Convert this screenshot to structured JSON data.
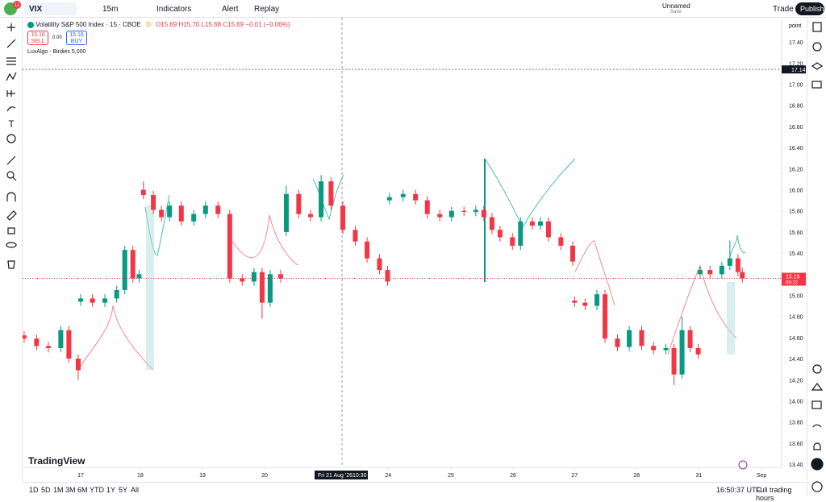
{
  "toolbar": {
    "avatar_badge": "11",
    "symbol": "VIX",
    "interval": "15m",
    "indicators": "Indicators",
    "alert": "Alert",
    "replay": "Replay",
    "layout_name": "Unnamed",
    "layout_status": "Save",
    "trade": "Trade",
    "publish": "Publish"
  },
  "legend": {
    "instrument": "Volatility S&P 500 Index · 15 · CBOE",
    "flag": "D",
    "ohlc": "O15.69 H15.70 L15.68 C15.69 −0.01 (−0.06%)",
    "sell_price": "15.16",
    "sell": "SELL",
    "spread": "0.00",
    "buy_price": "15.16",
    "buy": "BUY",
    "indicator": "LuxAlgo - Birdies 5,000"
  },
  "footer": {
    "ranges": [
      "1D",
      "5D",
      "1M",
      "3M",
      "6M",
      "YTD",
      "1Y",
      "5Y",
      "All"
    ],
    "clock": "16:50:37 UTC",
    "session": "Full trading hours"
  },
  "chart_data": {
    "type": "candlestick",
    "axis_unit": "point",
    "logo": "TradingView",
    "crosshair_date": "Fri 21 Aug '26",
    "crosshair_time": "10:30",
    "countdown": "09:22",
    "price_line": 17.14,
    "last_price": 15.16,
    "up_color": "#089981",
    "down_color": "#f23645",
    "xlim": [
      -0.935,
      11.27
    ],
    "ylim": [
      13.37,
      17.63
    ],
    "xticks": [
      {
        "value": 0,
        "label": "17"
      },
      {
        "value": 0.96,
        "label": "18"
      },
      {
        "value": 1.96,
        "label": "19"
      },
      {
        "value": 2.96,
        "label": "20"
      },
      {
        "value": 4.95,
        "label": "24"
      },
      {
        "value": 5.96,
        "label": "25"
      },
      {
        "value": 6.96,
        "label": "26"
      },
      {
        "value": 7.95,
        "label": "27"
      },
      {
        "value": 8.95,
        "label": "28"
      },
      {
        "value": 9.95,
        "label": "31"
      },
      {
        "value": 10.96,
        "label": "Sep"
      }
    ],
    "yticks": [
      {
        "value": 13.4,
        "label": "13.40"
      },
      {
        "value": 13.6,
        "label": "13.60"
      },
      {
        "value": 13.8,
        "label": "13.80"
      },
      {
        "value": 14,
        "label": "14.00"
      },
      {
        "value": 14.2,
        "label": "14.20"
      },
      {
        "value": 14.4,
        "label": "14.40"
      },
      {
        "value": 14.6,
        "label": "14.60"
      },
      {
        "value": 14.8,
        "label": "14.80"
      },
      {
        "value": 15,
        "label": "15.00"
      },
      {
        "value": 15.2,
        "label": "15.20"
      },
      {
        "value": 15.4,
        "label": "15.40"
      },
      {
        "value": 15.6,
        "label": "15.60"
      },
      {
        "value": 15.8,
        "label": "15.80"
      },
      {
        "value": 16,
        "label": "16.00"
      },
      {
        "value": 16.2,
        "label": "16.20"
      },
      {
        "value": 16.4,
        "label": "16.40"
      },
      {
        "value": 16.6,
        "label": "16.60"
      },
      {
        "value": 16.8,
        "label": "16.80"
      },
      {
        "value": 17,
        "label": "17.00"
      },
      {
        "value": 17.2,
        "label": "17.20"
      },
      {
        "value": 17.4,
        "label": "17.40"
      }
    ],
    "x": [
      -0.91,
      -0.71,
      -0.52,
      -0.32,
      -0.19,
      -0.04,
      0,
      0.19,
      0.39,
      0.58,
      0.71,
      0.84,
      0.94,
      1.01,
      1.17,
      1.3,
      1.43,
      1.62,
      1.82,
      2.01,
      2.21,
      2.4,
      2.6,
      2.79,
      2.92,
      3.05,
      3.22,
      3.31,
      3.51,
      3.7,
      3.87,
      4.03,
      4.22,
      4.42,
      4.61,
      4.81,
      4.94,
      4.97,
      5.19,
      5.39,
      5.58,
      5.78,
      5.97,
      6.17,
      6.36,
      6.49,
      6.62,
      6.75,
      6.95,
      7.08,
      7.27,
      7.4,
      7.53,
      7.73,
      7.92,
      7.95,
      8.12,
      8.31,
      8.44,
      8.64,
      8.83,
      9.03,
      9.22,
      9.42,
      9.55,
      9.68,
      9.81,
      9.94,
      9.97,
      10.13,
      10.32,
      10.45,
      10.58,
      10.65
    ],
    "open": [
      14.62,
      14.59,
      14.52,
      14.5,
      14.67,
      14.4,
      14.94,
      14.97,
      14.93,
      14.97,
      15.05,
      15.43,
      15.16,
      16.0,
      15.95,
      15.81,
      15.74,
      15.85,
      15.7,
      15.77,
      15.85,
      15.77,
      15.16,
      15.13,
      15.22,
      14.93,
      15.2,
      15.6,
      15.96,
      15.77,
      15.74,
      16.08,
      15.85,
      15.62,
      15.51,
      15.35,
      15.24,
      15.9,
      15.93,
      15.96,
      15.9,
      15.77,
      15.74,
      15.8,
      15.79,
      15.81,
      15.74,
      15.62,
      15.55,
      15.47,
      15.7,
      15.66,
      15.7,
      15.55,
      15.47,
      14.95,
      14.93,
      14.9,
      15.01,
      14.59,
      14.51,
      14.67,
      14.52,
      14.48,
      14.5,
      14.25,
      14.67,
      14.5,
      15.2,
      15.24,
      15.2,
      15.28,
      15.35,
      15.22
    ],
    "high": [
      14.66,
      14.63,
      14.56,
      14.71,
      14.71,
      14.44,
      15.01,
      15.01,
      15.01,
      15.09,
      15.47,
      15.47,
      15.24,
      16.08,
      15.99,
      15.85,
      15.89,
      15.89,
      15.81,
      15.89,
      15.89,
      15.81,
      15.2,
      15.26,
      15.26,
      15.24,
      15.24,
      16.04,
      16.0,
      15.81,
      16.14,
      16.12,
      15.89,
      15.66,
      15.55,
      15.39,
      15.28,
      15.97,
      16.0,
      16.0,
      15.94,
      15.81,
      15.84,
      15.84,
      15.85,
      15.85,
      15.78,
      15.66,
      15.59,
      15.74,
      15.74,
      15.74,
      15.74,
      15.59,
      15.51,
      14.99,
      14.97,
      15.05,
      15.05,
      14.63,
      14.71,
      14.71,
      14.56,
      14.54,
      14.54,
      14.8,
      14.71,
      14.54,
      15.28,
      15.28,
      15.32,
      15.52,
      15.39,
      15.26
    ],
    "low": [
      14.55,
      14.48,
      14.46,
      14.46,
      14.36,
      14.2,
      14.9,
      14.89,
      14.89,
      14.93,
      15.01,
      15.12,
      15.12,
      15.91,
      15.77,
      15.7,
      15.7,
      15.66,
      15.66,
      15.73,
      15.73,
      15.12,
      15.09,
      15.09,
      14.78,
      14.89,
      15.12,
      15.56,
      15.73,
      15.7,
      15.7,
      15.81,
      15.58,
      15.47,
      15.31,
      15.2,
      15.09,
      15.86,
      15.89,
      15.86,
      15.73,
      15.7,
      15.7,
      15.75,
      15.75,
      15.7,
      15.58,
      15.51,
      15.43,
      15.43,
      15.62,
      15.62,
      15.51,
      15.43,
      15.28,
      14.89,
      14.86,
      14.86,
      14.55,
      14.47,
      14.47,
      14.48,
      14.44,
      14.44,
      14.15,
      14.21,
      14.46,
      14.4,
      15.16,
      15.16,
      15.16,
      15.24,
      15.18,
      15.12
    ],
    "close": [
      14.59,
      14.52,
      14.5,
      14.67,
      14.4,
      14.29,
      14.97,
      14.93,
      14.97,
      15.05,
      15.43,
      15.16,
      15.2,
      15.95,
      15.81,
      15.74,
      15.85,
      15.7,
      15.77,
      15.85,
      15.77,
      15.16,
      15.13,
      15.22,
      14.93,
      15.2,
      15.16,
      15.96,
      15.77,
      15.74,
      16.08,
      15.85,
      15.62,
      15.51,
      15.35,
      15.24,
      15.13,
      15.93,
      15.96,
      15.9,
      15.77,
      15.74,
      15.8,
      15.79,
      15.81,
      15.74,
      15.62,
      15.55,
      15.47,
      15.7,
      15.66,
      15.7,
      15.55,
      15.47,
      15.32,
      14.93,
      14.9,
      15.01,
      14.59,
      14.51,
      14.67,
      14.52,
      14.48,
      14.5,
      14.25,
      14.67,
      14.5,
      14.44,
      15.24,
      15.2,
      15.28,
      15.35,
      15.22,
      15.16
    ]
  }
}
